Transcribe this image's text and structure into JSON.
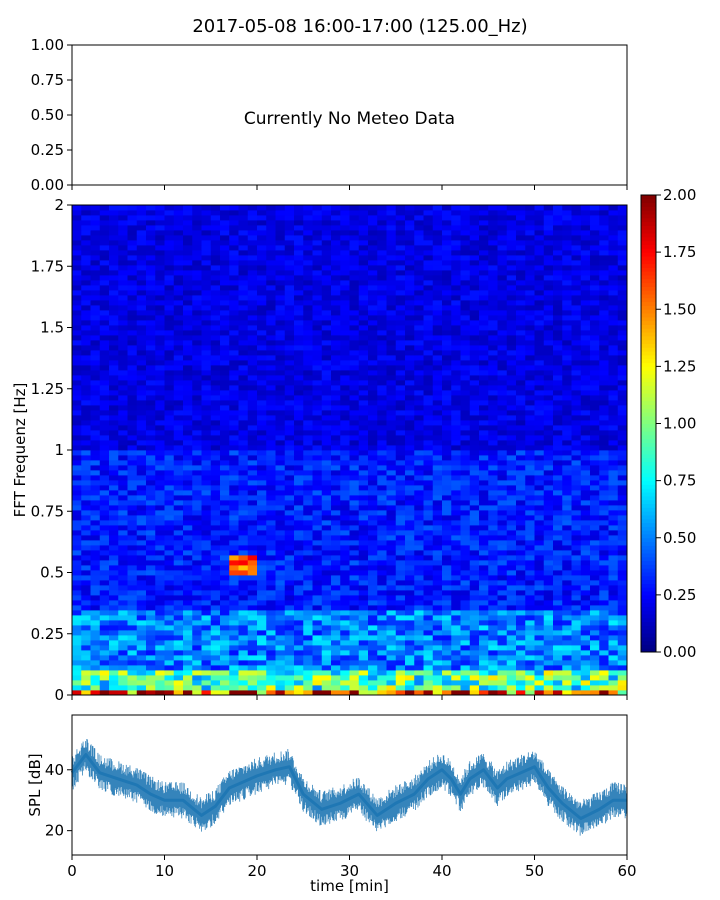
{
  "chart_data": [
    {
      "type": "other",
      "title": "2017-05-08 16:00-17:00 (125.00_Hz)",
      "annotation": "Currently No Meteo Data",
      "xlim": [
        0,
        60
      ],
      "ylim": [
        0,
        1
      ],
      "y_ticks": [
        "0.00",
        "0.25",
        "0.50",
        "0.75",
        "1.00"
      ],
      "x_tick_labels_shown": false
    },
    {
      "type": "heatmap",
      "ylabel": "FFT Frequenz [Hz]",
      "xlim": [
        0,
        60
      ],
      "ylim": [
        0,
        2
      ],
      "y_ticks": [
        "0",
        "0.25",
        "0.5",
        "0.75",
        "1",
        "1.25",
        "1.5",
        "1.75",
        "2"
      ],
      "colormap": "jet",
      "colorbar": {
        "range": [
          0,
          2
        ],
        "ticks": [
          "0.00",
          "0.25",
          "0.50",
          "0.75",
          "1.00",
          "1.25",
          "1.50",
          "1.75",
          "2.00"
        ]
      },
      "typical_levels": [
        {
          "freq_range_hz": [
            0.0,
            0.03
          ],
          "level": 1.6
        },
        {
          "freq_range_hz": [
            0.03,
            0.1
          ],
          "level": 0.9
        },
        {
          "freq_range_hz": [
            0.1,
            0.35
          ],
          "level": 0.5
        },
        {
          "freq_range_hz": [
            0.35,
            1.0
          ],
          "level": 0.3
        },
        {
          "freq_range_hz": [
            1.0,
            2.0
          ],
          "level": 0.2
        }
      ],
      "hotspots": [
        {
          "time_min": [
            17,
            20
          ],
          "freq_hz": [
            0.5,
            0.58
          ],
          "level": 1.6
        }
      ]
    },
    {
      "type": "line",
      "xlabel": "time [min]",
      "ylabel": "SPL [dB]",
      "xlim": [
        0,
        60
      ],
      "ylim": [
        12,
        58
      ],
      "x_ticks": [
        "0",
        "10",
        "20",
        "30",
        "40",
        "50",
        "60"
      ],
      "y_ticks": [
        "20",
        "40"
      ],
      "series_color": "#1f77b4",
      "x": [
        0,
        1.5,
        3,
        5,
        7,
        8.5,
        10,
        12,
        14,
        15.5,
        17,
        18.5,
        20,
        22,
        23.5,
        25,
        27,
        29,
        31,
        33,
        35,
        37,
        38.5,
        40,
        41,
        42,
        43,
        44.5,
        46,
        47,
        48.5,
        50,
        51.5,
        53,
        55,
        57,
        58.5,
        60
      ],
      "values": [
        39,
        45,
        39,
        37,
        35,
        32,
        30,
        30,
        25,
        28,
        34,
        36,
        38,
        40,
        41,
        32,
        27,
        29,
        32,
        25,
        29,
        32,
        37,
        40,
        37,
        32,
        37,
        40,
        34,
        37,
        39,
        41,
        34,
        29,
        24,
        27,
        30,
        30
      ]
    }
  ]
}
